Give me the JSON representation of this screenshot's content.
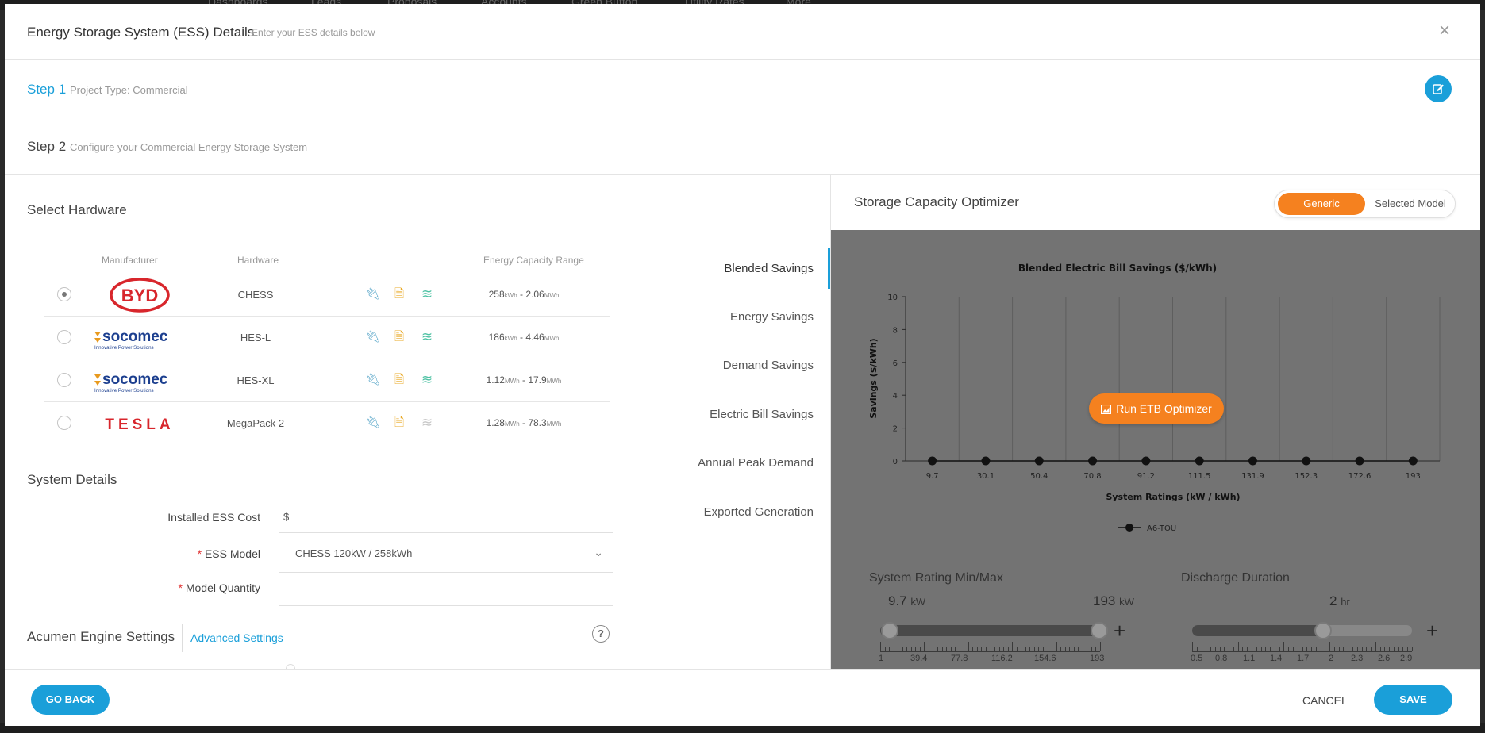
{
  "background": {
    "nav_items": [
      "Dashboards",
      "Leads",
      "Proposals",
      "Accounts",
      "Green Button",
      "Utility Rates",
      "More"
    ]
  },
  "modal": {
    "title": "Energy Storage System (ESS) Details",
    "subtitle": "Enter your ESS details below",
    "close_icon": "×"
  },
  "step1": {
    "label": "Step 1",
    "desc": "Project Type: Commercial",
    "edit_icon": "edit-icon"
  },
  "step2": {
    "label": "Step 2",
    "desc": "Configure your Commercial Energy Storage System"
  },
  "hardware": {
    "title": "Select Hardware",
    "columns": {
      "manufacturer": "Manufacturer",
      "hardware": "Hardware",
      "range": "Energy Capacity Range"
    },
    "rows": [
      {
        "manufacturer": "BYD",
        "name": "CHESS",
        "min": "258",
        "min_unit": "kWh",
        "max": "2.06",
        "max_unit": "MWh",
        "selected": true
      },
      {
        "manufacturer": "socomec",
        "name": "HES-L",
        "min": "186",
        "min_unit": "kWh",
        "max": "4.46",
        "max_unit": "MWh",
        "selected": false
      },
      {
        "manufacturer": "socomec",
        "name": "HES-XL",
        "min": "1.12",
        "min_unit": "MWh",
        "max": "17.9",
        "max_unit": "MWh",
        "selected": false
      },
      {
        "manufacturer": "TESLA",
        "name": "MegaPack 2",
        "min": "1.28",
        "min_unit": "MWh",
        "max": "78.3",
        "max_unit": "MWh",
        "selected": false
      }
    ],
    "socomec_tagline": "Innovative Power Solutions"
  },
  "system": {
    "title": "System Details",
    "cost_label": "Installed ESS Cost",
    "cost_prefix": "$",
    "cost_value": "",
    "model_label": "ESS Model",
    "model_value": "CHESS 120kW / 258kWh",
    "qty_label": "Model Quantity",
    "qty_value": "",
    "required_mark": "*"
  },
  "acumen": {
    "title": "Acumen Engine Settings",
    "advanced": "Advanced Settings",
    "help": "?"
  },
  "metric_tabs": [
    "Blended Savings",
    "Energy Savings",
    "Demand Savings",
    "Electric Bill Savings",
    "Annual Peak Demand",
    "Exported Generation"
  ],
  "optimizer": {
    "title": "Storage Capacity Optimizer",
    "toggle": {
      "generic": "Generic",
      "selected": "Selected Model",
      "active": "generic"
    },
    "run_button": "Run ETB Optimizer",
    "run_icon": "chart-icon"
  },
  "chart_data": {
    "type": "line",
    "title": "Blended Electric Bill Savings ($/kWh)",
    "xlabel": "System Ratings (kW / kWh)",
    "ylabel": "Savings ($/kWh)",
    "categories": [
      "9.7",
      "30.1",
      "50.4",
      "70.8",
      "91.2",
      "111.5",
      "131.9",
      "152.3",
      "172.6",
      "193"
    ],
    "series": [
      {
        "name": "A6-TOU",
        "values": [
          0,
          0,
          0,
          0,
          0,
          0,
          0,
          0,
          0,
          0
        ]
      }
    ],
    "ylim": [
      0,
      10
    ],
    "yticks": [
      "0",
      "2",
      "4",
      "6",
      "8",
      "10"
    ],
    "grid": "vertical",
    "legend": "bottom"
  },
  "sliders": {
    "rating": {
      "title": "System Rating Min/Max",
      "min_value": "9.7",
      "min_unit": "kW",
      "max_value": "193",
      "max_unit": "kW",
      "ticks": [
        "1",
        "39.4",
        "77.8",
        "116.2",
        "154.6",
        "193"
      ],
      "low_fraction": 0.045,
      "high_fraction": 0.995
    },
    "duration": {
      "title": "Discharge Duration",
      "value": "2",
      "unit": "hr",
      "ticks": [
        "0.5",
        "0.8",
        "1.1",
        "1.4",
        "1.7",
        "2",
        "2.3",
        "2.6",
        "2.9"
      ],
      "fraction": 0.5946
    },
    "plus": "+"
  },
  "footer": {
    "go_back": "GO BACK",
    "cancel": "CANCEL",
    "save": "SAVE"
  }
}
